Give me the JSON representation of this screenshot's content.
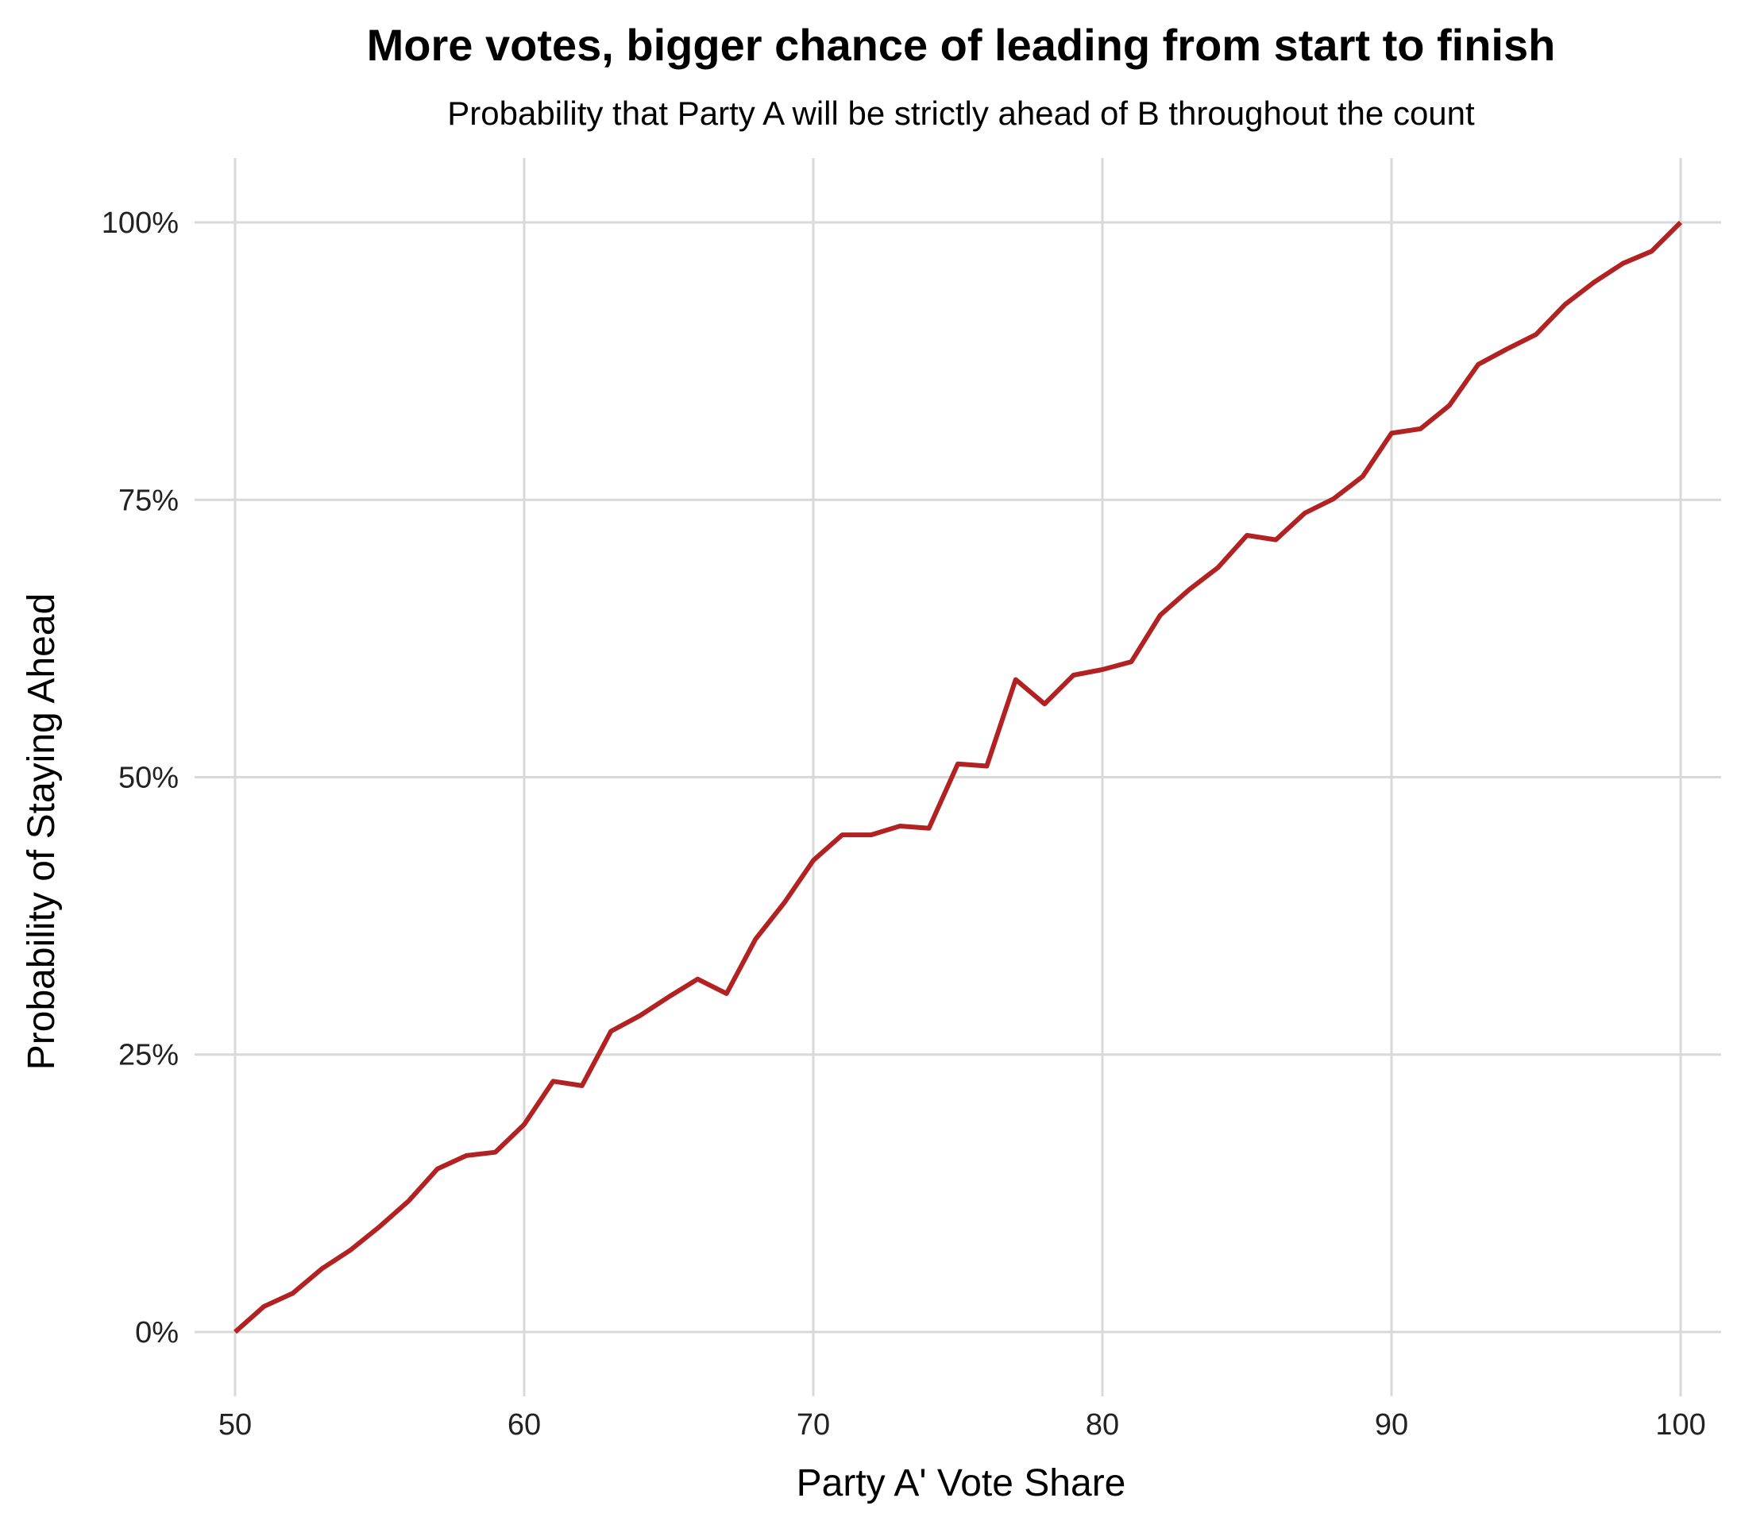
{
  "chart_data": {
    "type": "line",
    "title": "More votes, bigger chance of leading from start to finish",
    "subtitle": "Probability that Party A will be strictly ahead of B throughout the count",
    "xlabel": "Party A' Vote Share",
    "ylabel": "Probability of Staying Ahead",
    "xlim": [
      48.6,
      101.4
    ],
    "ylim": [
      -0.058,
      1.058
    ],
    "x_ticks": [
      50,
      60,
      70,
      80,
      90,
      100
    ],
    "y_ticks": [
      0,
      0.25,
      0.5,
      0.75,
      1.0
    ],
    "y_tick_labels": [
      "0%",
      "25%",
      "50%",
      "75%",
      "100%"
    ],
    "x_tick_labels": [
      "50",
      "60",
      "70",
      "80",
      "90",
      "100"
    ],
    "grid": true,
    "line_color": "#b22222",
    "grid_color": "#d9d9d9",
    "series": [
      {
        "x": [
          50,
          51,
          52,
          53,
          54,
          55,
          56,
          57,
          58,
          59,
          60,
          61,
          62,
          63,
          64,
          65,
          66,
          67,
          68,
          69,
          70,
          71,
          72,
          73,
          74,
          75,
          76,
          77,
          78,
          79,
          80,
          81,
          82,
          83,
          84,
          85,
          86,
          87,
          88,
          89,
          90,
          91,
          92,
          93,
          94,
          95,
          96,
          97,
          98,
          99,
          100
        ],
        "values": [
          0.0,
          0.023,
          0.035,
          0.057,
          0.074,
          0.095,
          0.118,
          0.147,
          0.159,
          0.162,
          0.187,
          0.226,
          0.222,
          0.271,
          0.285,
          0.302,
          0.318,
          0.305,
          0.354,
          0.387,
          0.425,
          0.448,
          0.448,
          0.456,
          0.454,
          0.512,
          0.51,
          0.588,
          0.566,
          0.592,
          0.597,
          0.604,
          0.646,
          0.669,
          0.689,
          0.718,
          0.714,
          0.738,
          0.751,
          0.771,
          0.81,
          0.814,
          0.835,
          0.872,
          0.886,
          0.899,
          0.926,
          0.946,
          0.963,
          0.974,
          1.0
        ]
      }
    ]
  }
}
